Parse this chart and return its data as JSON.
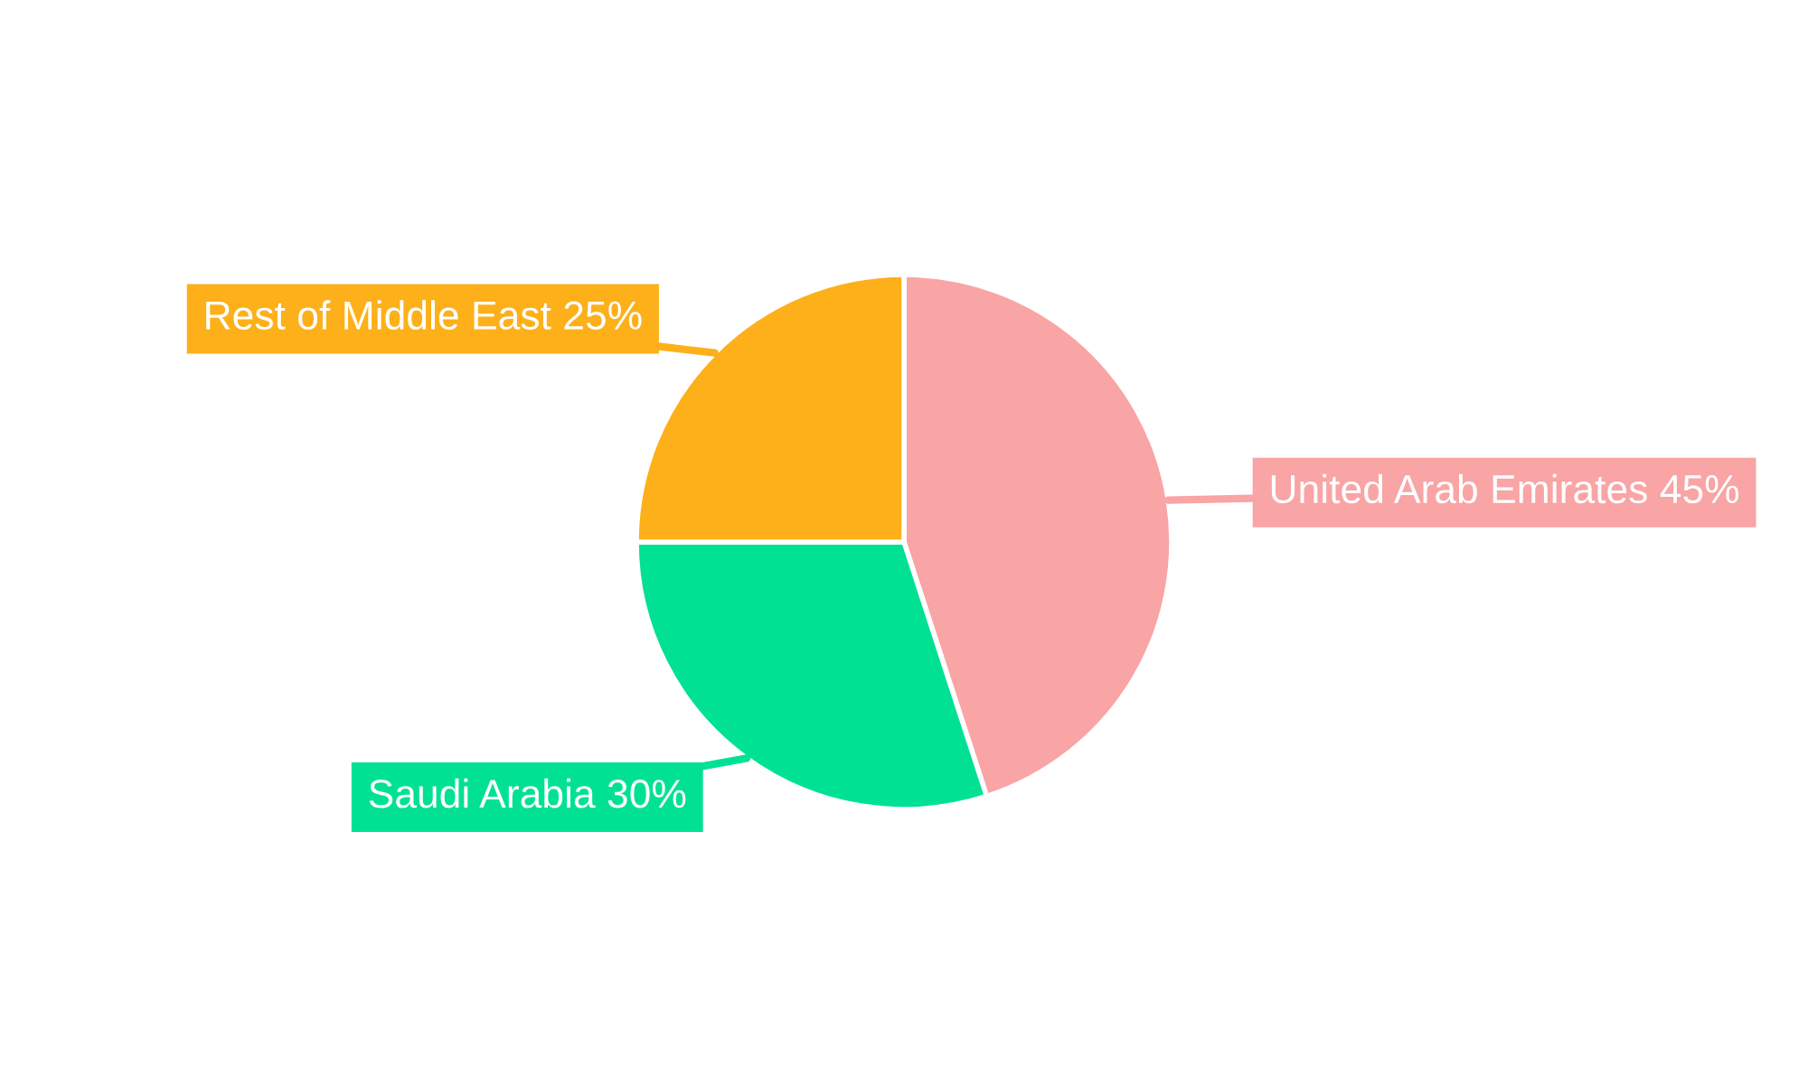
{
  "chart_data": {
    "type": "pie",
    "categories": [
      "United Arab Emirates",
      "Saudi Arabia",
      "Rest of Middle East"
    ],
    "values": [
      45,
      30,
      25
    ],
    "value_labels": [
      "45%",
      "30%",
      "25%"
    ],
    "colors": [
      "#f9a4a5",
      "#00e193",
      "#fdb01a"
    ],
    "legend": false
  }
}
